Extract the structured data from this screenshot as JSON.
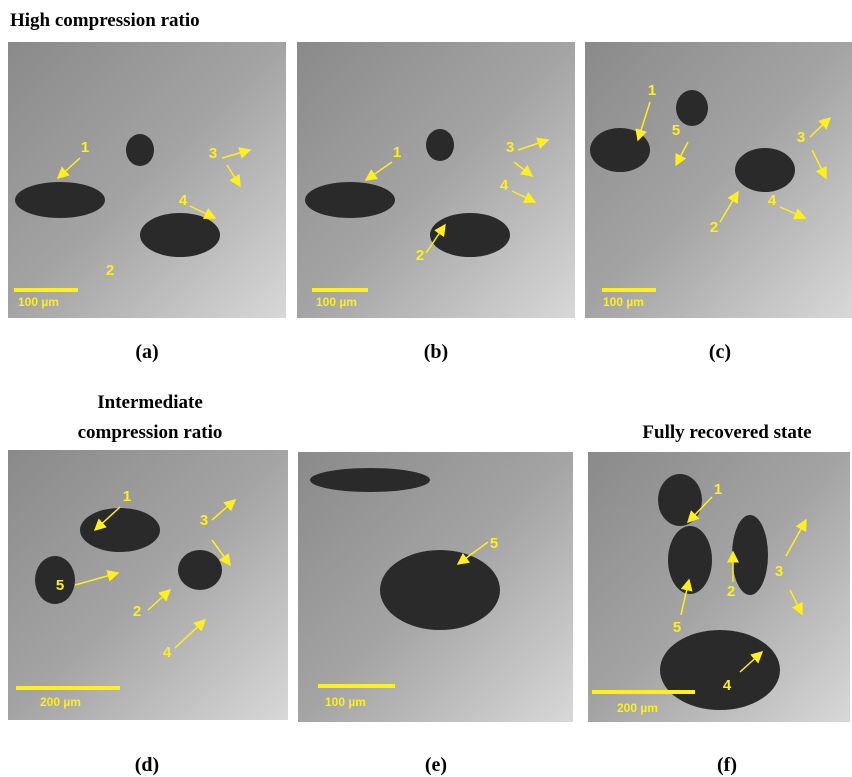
{
  "headings": {
    "high": "High compression ratio",
    "intermediate": [
      "Intermediate",
      "compression ratio"
    ],
    "recovered": "Fully recovered state"
  },
  "panels": [
    {
      "caption": "(a)",
      "scale_bar": "100 µm",
      "labels": [
        "1",
        "2",
        "3",
        "4"
      ]
    },
    {
      "caption": "(b)",
      "scale_bar": "100 µm",
      "labels": [
        "1",
        "2",
        "3",
        "4"
      ]
    },
    {
      "caption": "(c)",
      "scale_bar": "100 µm",
      "labels": [
        "1",
        "5",
        "3",
        "2",
        "4"
      ]
    },
    {
      "caption": "(d)",
      "scale_bar": "200 µm",
      "labels": [
        "1",
        "3",
        "5",
        "2",
        "4"
      ]
    },
    {
      "caption": "(e)",
      "scale_bar": "100 µm",
      "labels": [
        "5"
      ]
    },
    {
      "caption": "(f)",
      "scale_bar": "200 µm",
      "labels": [
        "1",
        "2",
        "3",
        "5",
        "4"
      ]
    }
  ]
}
